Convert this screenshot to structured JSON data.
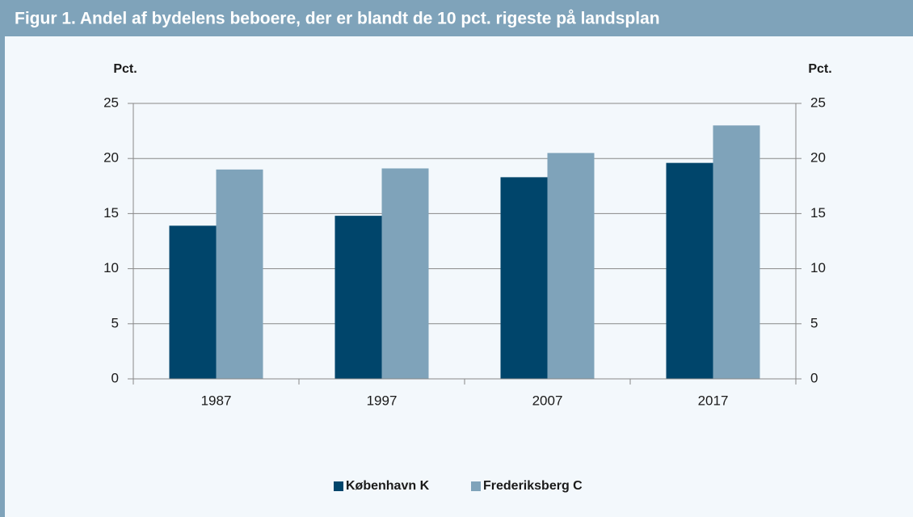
{
  "chart_data": {
    "type": "bar",
    "title": "Figur 1. Andel af bydelens beboere, der er blandt de 10 pct. rigeste på landsplan",
    "ylabel": "Pct.",
    "y2label": "Pct.",
    "categories": [
      "1987",
      "1997",
      "2007",
      "2017"
    ],
    "series": [
      {
        "name": "København K",
        "color": "#00456b",
        "values": [
          13.9,
          14.8,
          18.3,
          19.6
        ]
      },
      {
        "name": "Frederiksberg C",
        "color": "#7fa3ba",
        "values": [
          19.0,
          19.1,
          20.5,
          23.0
        ]
      }
    ],
    "ylim": [
      0,
      25
    ],
    "yticks": [
      0,
      5,
      10,
      15,
      20,
      25
    ],
    "y2lim": [
      0,
      25
    ],
    "y2ticks": [
      0,
      5,
      10,
      15,
      20,
      25
    ],
    "grid": true,
    "legend": "bottom"
  }
}
